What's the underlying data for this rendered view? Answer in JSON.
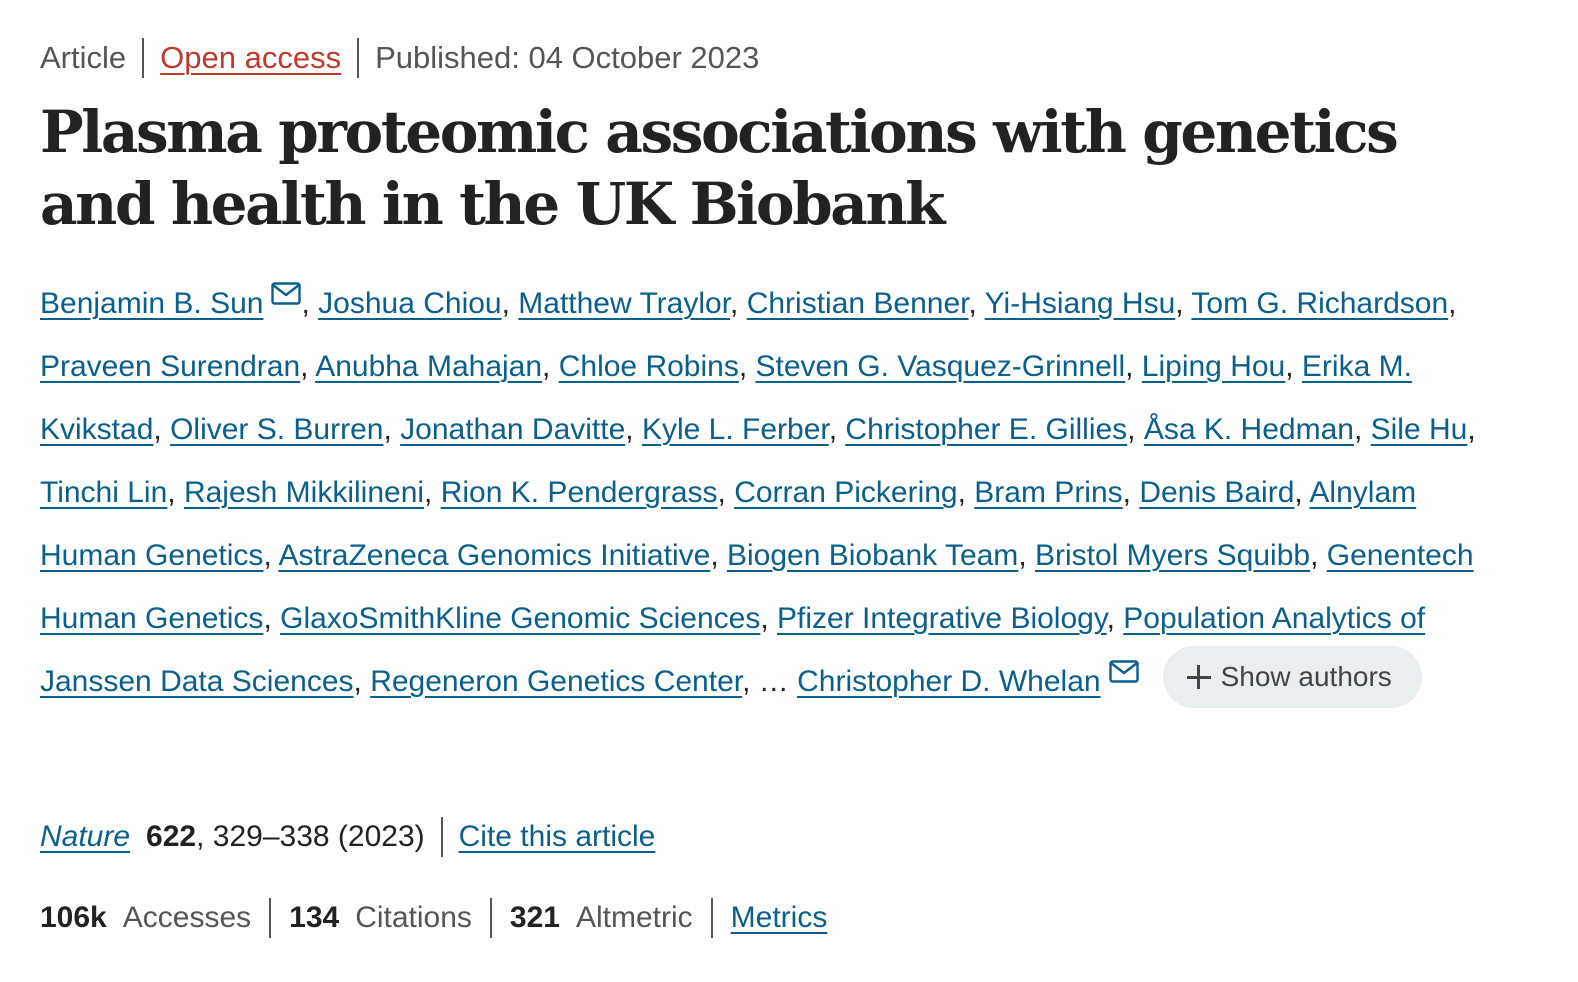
{
  "meta": {
    "article_type": "Article",
    "open_access": "Open access",
    "published": "Published: 04 October 2023"
  },
  "title": "Plasma proteomic associations with genetics and health in the UK Biobank",
  "authors": {
    "list": [
      {
        "name": "Benjamin B. Sun",
        "mail": true
      },
      {
        "name": "Joshua Chiou",
        "mail": false
      },
      {
        "name": "Matthew Traylor",
        "mail": false
      },
      {
        "name": "Christian Benner",
        "mail": false
      },
      {
        "name": "Yi-Hsiang Hsu",
        "mail": false
      },
      {
        "name": "Tom G. Richardson",
        "mail": false
      },
      {
        "name": "Praveen Surendran",
        "mail": false
      },
      {
        "name": "Anubha Mahajan",
        "mail": false
      },
      {
        "name": "Chloe Robins",
        "mail": false
      },
      {
        "name": "Steven G. Vasquez-Grinnell",
        "mail": false
      },
      {
        "name": "Liping Hou",
        "mail": false
      },
      {
        "name": "Erika M. Kvikstad",
        "mail": false
      },
      {
        "name": "Oliver S. Burren",
        "mail": false
      },
      {
        "name": "Jonathan Davitte",
        "mail": false
      },
      {
        "name": "Kyle L. Ferber",
        "mail": false
      },
      {
        "name": "Christopher E. Gillies",
        "mail": false
      },
      {
        "name": "Åsa K. Hedman",
        "mail": false
      },
      {
        "name": "Sile Hu",
        "mail": false
      },
      {
        "name": "Tinchi Lin",
        "mail": false
      },
      {
        "name": "Rajesh Mikkilineni",
        "mail": false
      },
      {
        "name": "Rion K. Pendergrass",
        "mail": false
      },
      {
        "name": "Corran Pickering",
        "mail": false
      },
      {
        "name": "Bram Prins",
        "mail": false
      },
      {
        "name": "Denis Baird",
        "mail": false
      },
      {
        "name": "Alnylam Human Genetics",
        "mail": false
      },
      {
        "name": "AstraZeneca Genomics Initiative",
        "mail": false
      },
      {
        "name": "Biogen Biobank Team",
        "mail": false
      },
      {
        "name": "Bristol Myers Squibb",
        "mail": false
      },
      {
        "name": "Genentech Human Genetics",
        "mail": false
      },
      {
        "name": "GlaxoSmithKline Genomic Sciences",
        "mail": false
      },
      {
        "name": "Pfizer Integrative Biology",
        "mail": false
      },
      {
        "name": "Population Analytics of Janssen Data Sciences",
        "mail": false
      },
      {
        "name": "Regeneron Genetics Center",
        "mail": false
      }
    ],
    "ellipsis": "…",
    "last": {
      "name": "Christopher D. Whelan",
      "mail": true
    },
    "show_authors_label": "Show authors",
    "mail_icon": "mail-icon",
    "plus_icon": "plus-icon"
  },
  "citation": {
    "journal": "Nature",
    "volume": "622",
    "pages_year": ", 329–338 (2023)",
    "cite_label": "Cite this article"
  },
  "metrics": {
    "accesses_value": "106k",
    "accesses_label": "Accesses",
    "citations_value": "134",
    "citations_label": "Citations",
    "altmetric_value": "321",
    "altmetric_label": "Altmetric",
    "metrics_link": "Metrics"
  },
  "colors": {
    "link": "#0a5f8c",
    "open_access": "#c0392b",
    "text": "#222222",
    "muted": "#555555",
    "pill_bg": "#e9eef1"
  }
}
